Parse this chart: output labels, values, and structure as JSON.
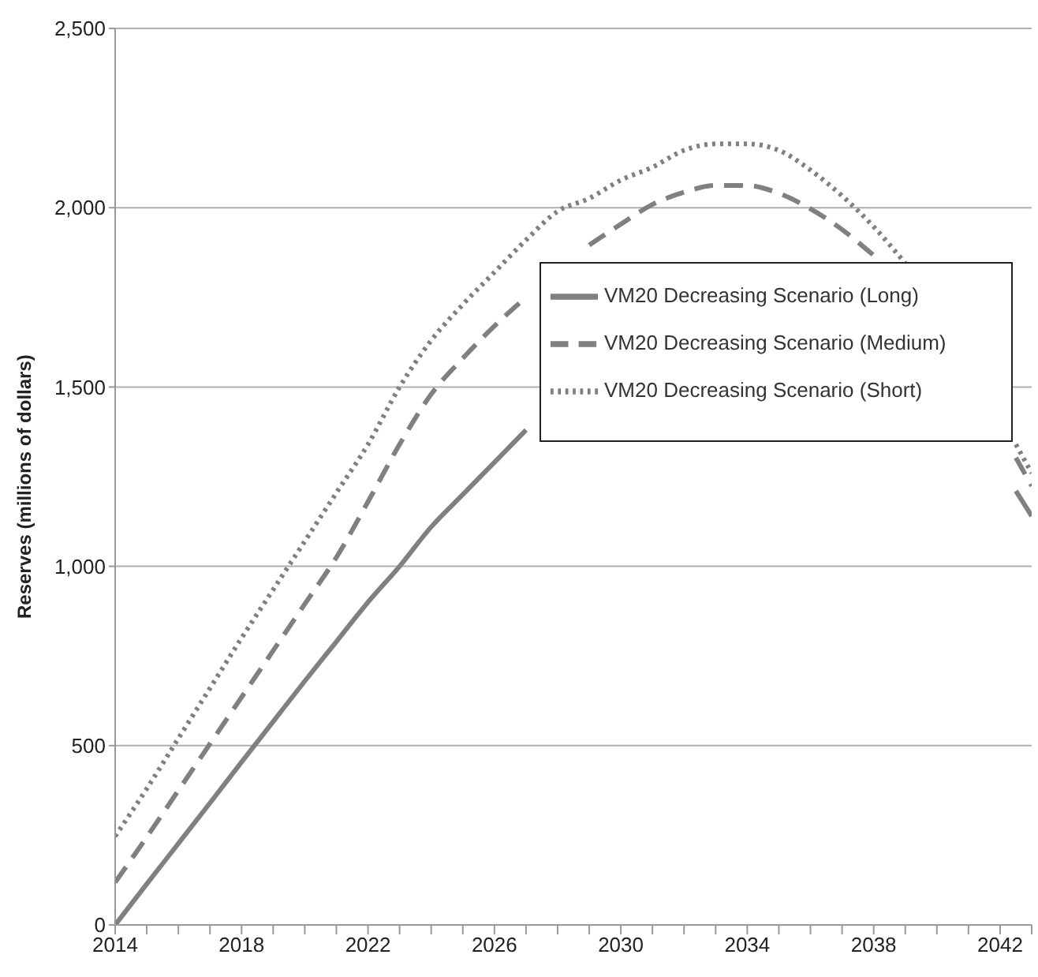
{
  "chart_data": {
    "type": "line",
    "ylabel": "Reserves (millions of dollars)",
    "x": [
      2014,
      2015,
      2016,
      2017,
      2018,
      2019,
      2020,
      2021,
      2022,
      2023,
      2024,
      2025,
      2026,
      2027,
      2028,
      2029,
      2030,
      2031,
      2032,
      2033,
      2034,
      2035,
      2036,
      2037,
      2038,
      2039,
      2040,
      2041,
      2042.5,
      2043
    ],
    "series": [
      {
        "name": "VM20 Decreasing Scenario (Long)",
        "color": "#808080",
        "line_style": "solid",
        "values": [
          0,
          114,
          227,
          340,
          454,
          567,
          680,
          790,
          900,
          1000,
          1110,
          1200,
          1290,
          1380,
          null,
          null,
          null,
          null,
          null,
          null,
          null,
          null,
          null,
          null,
          null,
          null,
          null,
          null,
          1210,
          1140
        ]
      },
      {
        "name": "VM20 Decreasing Scenario (Medium)",
        "color": "#808080",
        "line_style": "dashed",
        "values": [
          119,
          245,
          375,
          505,
          635,
          765,
          895,
          1025,
          1180,
          1340,
          1480,
          1580,
          1670,
          1750,
          null,
          1896,
          1954,
          2009,
          2043,
          2062,
          2062,
          2040,
          1997,
          1939,
          1867,
          null,
          null,
          null,
          1303,
          1224
        ]
      },
      {
        "name": "VM20 Decreasing Scenario (Short)",
        "color": "#808080",
        "line_style": "dotted",
        "values": [
          247,
          380,
          520,
          660,
          800,
          935,
          1070,
          1205,
          1340,
          1500,
          1630,
          1730,
          1820,
          1910,
          1990,
          2026,
          2077,
          2113,
          2160,
          2178,
          2178,
          2160,
          2105,
          2033,
          1947,
          1845,
          null,
          null,
          1340,
          1260
        ]
      }
    ],
    "xlim": [
      2014,
      2043
    ],
    "xticks": [
      2014,
      {
        "value": 2015,
        "label": null
      },
      {
        "value": 2016,
        "label": null
      },
      {
        "value": 2017,
        "label": null
      },
      2018,
      {
        "value": 2019,
        "label": null
      },
      {
        "value": 2020,
        "label": null
      },
      {
        "value": 2021,
        "label": null
      },
      2022,
      {
        "value": 2023,
        "label": null
      },
      {
        "value": 2024,
        "label": null
      },
      {
        "value": 2025,
        "label": null
      },
      2026,
      {
        "value": 2027,
        "label": null
      },
      {
        "value": 2028,
        "label": null
      },
      {
        "value": 2029,
        "label": null
      },
      2030,
      {
        "value": 2031,
        "label": null
      },
      {
        "value": 2032,
        "label": null
      },
      {
        "value": 2033,
        "label": null
      },
      2034,
      {
        "value": 2035,
        "label": null
      },
      {
        "value": 2036,
        "label": null
      },
      {
        "value": 2037,
        "label": null
      },
      2038,
      {
        "value": 2039,
        "label": null
      },
      {
        "value": 2040,
        "label": null
      },
      {
        "value": 2041,
        "label": null
      },
      2042,
      {
        "value": 2043,
        "label": null
      }
    ],
    "ylim": [
      0,
      2500
    ],
    "yticks": [
      0,
      500,
      {
        "value": 1000,
        "label": "1,000"
      },
      {
        "value": 1500,
        "label": "1,500"
      },
      {
        "value": 2000,
        "label": "2,000"
      },
      {
        "value": 2500,
        "label": "2,500"
      }
    ],
    "grid": "y",
    "legend": "right",
    "marker": "none"
  }
}
